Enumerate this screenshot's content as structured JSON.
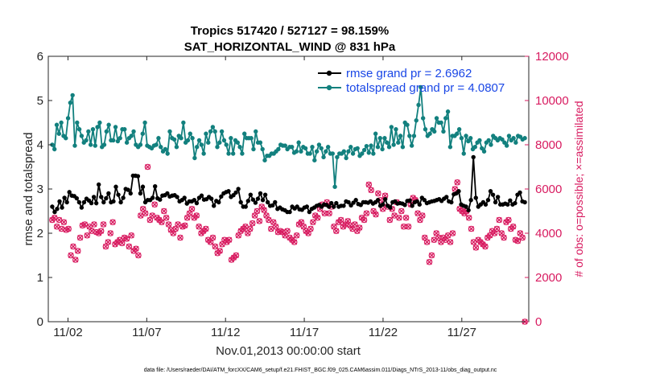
{
  "chart_data": {
    "type": "line",
    "title_line1": "Tropics 517420 / 527127 = 98.159%",
    "title_line2": "SAT_HORIZONTAL_WIND @ 831 hPa",
    "xlabel": "Nov.01,2013 00:00:00 start",
    "ylabel": "rmse and totalspread",
    "ylabel_right": "# of obs: o=possible; ×=assimilated",
    "footer": "data file: /Users/raeder/DAI/ATM_forcXX/CAM6_setup/f.e21.FHIST_BGC.f09_025.CAM6assim.011/Diags_NTrS_2013-11/obs_diag_output.nc",
    "xlim": [
      0.75,
      31.25
    ],
    "ylim": [
      0,
      6
    ],
    "ylim_right": [
      0,
      12000
    ],
    "xticks": [
      2,
      7,
      12,
      17,
      22,
      27
    ],
    "xtick_labels": [
      "11/02",
      "11/07",
      "11/12",
      "11/17",
      "11/22",
      "11/27"
    ],
    "yticks": [
      0,
      1,
      2,
      3,
      4,
      5,
      6
    ],
    "yticks_right": [
      0,
      2000,
      4000,
      6000,
      8000,
      10000,
      12000
    ],
    "colors": {
      "rmse": "#000000",
      "spread": "#12807e",
      "obs": "#d81b60",
      "legend_text": "#1a47e6",
      "axis": "#262626"
    },
    "series": [
      {
        "name": "rmse grand pr = 2.6962",
        "axis": "left",
        "values": [
          2.6,
          2.48,
          2.55,
          2.72,
          2.58,
          2.8,
          2.7,
          2.93,
          2.85,
          2.84,
          2.79,
          2.7,
          2.58,
          2.7,
          2.78,
          2.74,
          2.68,
          2.82,
          2.68,
          3.1,
          2.82,
          2.7,
          2.79,
          2.9,
          2.7,
          2.72,
          3.05,
          2.87,
          2.7,
          2.8,
          3.0,
          2.98,
          2.9,
          3.3,
          3.3,
          3.29,
          2.9,
          3.05,
          2.7,
          2.75,
          2.75,
          2.8,
          3.06,
          2.79,
          2.76,
          2.85,
          2.86,
          2.9,
          2.83,
          2.85,
          2.86,
          2.82,
          2.72,
          2.75,
          2.8,
          2.67,
          2.72,
          2.72,
          2.75,
          2.68,
          2.8,
          2.85,
          2.76,
          2.77,
          2.82,
          2.78,
          2.62,
          2.73,
          2.7,
          2.83,
          2.9,
          2.93,
          2.95,
          2.82,
          2.86,
          2.92,
          3.0,
          2.7,
          2.6,
          2.6,
          2.73,
          2.87,
          2.76,
          2.69,
          2.78,
          2.9,
          2.75,
          2.87,
          2.7,
          2.62,
          2.63,
          2.7,
          2.55,
          2.58,
          2.54,
          2.52,
          2.48,
          2.48,
          2.6,
          2.56,
          2.6,
          2.54,
          2.53,
          2.58,
          2.6,
          2.48,
          2.55,
          2.58,
          2.62,
          2.64,
          2.6,
          2.65,
          2.64,
          2.6,
          2.68,
          2.6,
          2.68,
          2.6,
          2.62,
          2.62,
          2.72,
          2.7,
          2.63,
          2.69,
          2.75,
          2.66,
          2.64,
          2.7,
          2.7,
          2.69,
          2.72,
          2.67,
          2.7,
          2.75,
          2.62,
          2.65,
          2.77,
          2.62,
          2.58,
          2.7,
          2.72,
          2.67,
          2.68,
          2.67,
          2.64,
          2.73,
          2.74,
          2.62,
          2.7,
          2.72,
          2.65,
          2.8,
          2.75,
          2.68,
          2.7,
          2.72,
          2.73,
          2.75,
          2.77,
          2.73,
          2.78,
          2.82,
          2.72,
          2.7,
          2.88,
          2.9,
          2.95,
          2.65,
          2.62,
          2.6,
          2.52,
          2.75,
          3.72,
          2.8,
          2.6,
          2.65,
          2.7,
          2.65,
          2.75,
          2.95,
          2.87,
          2.7,
          2.82,
          2.65,
          2.65,
          2.67,
          2.65,
          2.74,
          2.65,
          2.68,
          2.87,
          2.92,
          2.72,
          2.7
        ]
      },
      {
        "name": "totalspread grand pr = 4.0807",
        "axis": "left",
        "values": [
          4.0,
          3.9,
          4.45,
          4.25,
          4.5,
          4.2,
          4.15,
          4.6,
          4.95,
          5.12,
          3.98,
          4.5,
          4.35,
          4.2,
          4.05,
          4.1,
          4.3,
          4.0,
          4.35,
          3.98,
          4.4,
          4.5,
          3.95,
          4.0,
          4.3,
          4.45,
          4.1,
          4.1,
          4.4,
          4.08,
          4.15,
          4.35,
          4.35,
          4.05,
          4.15,
          4.2,
          4.3,
          4.0,
          3.95,
          4.0,
          4.25,
          4.5,
          3.98,
          3.95,
          3.92,
          3.98,
          4.0,
          4.15,
          3.95,
          3.85,
          3.9,
          3.8,
          4.3,
          4.15,
          4.12,
          3.95,
          4.2,
          4.15,
          4.5,
          4.05,
          4.1,
          4.25,
          4.15,
          3.7,
          3.95,
          4.1,
          4.0,
          3.8,
          4.25,
          4.05,
          4.3,
          4.4,
          4.3,
          3.95,
          4.05,
          4.3,
          4.1,
          4.0,
          3.8,
          4.15,
          3.8,
          4.1,
          4.05,
          3.95,
          3.8,
          4.25,
          4.15,
          4.15,
          4.15,
          3.9,
          4.3,
          4.05,
          4.05,
          3.9,
          3.65,
          3.75,
          3.75,
          3.8,
          3.8,
          3.85,
          3.9,
          4.0,
          3.98,
          3.98,
          3.9,
          3.95,
          3.95,
          3.82,
          3.85,
          4.05,
          3.85,
          3.95,
          3.92,
          3.8,
          3.8,
          3.95,
          3.65,
          3.85,
          4.0,
          3.92,
          3.72,
          3.85,
          3.95,
          3.8,
          3.8,
          3.05,
          3.72,
          3.8,
          3.8,
          3.85,
          3.7,
          3.85,
          3.95,
          3.8,
          3.9,
          3.92,
          3.75,
          3.8,
          3.88,
          3.97,
          3.82,
          3.98,
          3.8,
          4.25,
          3.95,
          4.15,
          3.9,
          4.15,
          4.05,
          3.95,
          4.4,
          4.0,
          4.35,
          4.05,
          4.2,
          3.95,
          4.5,
          4.45,
          4.2,
          3.98,
          4.2,
          4.55,
          4.9,
          5.3,
          4.6,
          4.35,
          4.2,
          4.25,
          4.35,
          4.3,
          4.6,
          4.5,
          4.5,
          4.3,
          4.6,
          4.75,
          3.95,
          4.2,
          4.2,
          4.25,
          4.35,
          4.15,
          3.8,
          4.2,
          4.08,
          4.15,
          3.9,
          3.95,
          4.05,
          4.1,
          3.92,
          3.85,
          4.05,
          4.1,
          4.0,
          4.2,
          4.15,
          4.1,
          4.15,
          4.12,
          4.05,
          3.98,
          4.2,
          4.1,
          4.15,
          4.05,
          4.2,
          4.18,
          4.12,
          4.15
        ]
      },
      {
        "name": "obs possible / assimilated",
        "axis": "right",
        "values": [
          4600,
          4700,
          4300,
          4600,
          4200,
          4500,
          4150,
          4200,
          3000,
          3400,
          2800,
          3200,
          3800,
          4350,
          4400,
          3900,
          4300,
          4100,
          4400,
          4050,
          4000,
          4100,
          4400,
          3400,
          3600,
          4000,
          4500,
          3500,
          3600,
          3700,
          3550,
          3800,
          3750,
          3400,
          3900,
          3200,
          3300,
          3000,
          4800,
          5100,
          4900,
          7000,
          4600,
          4800,
          5300,
          4700,
          4600,
          4500,
          5000,
          4700,
          4400,
          4150,
          4000,
          4200,
          4400,
          3800,
          4300,
          4350,
          4700,
          4900,
          5100,
          4700,
          4800,
          4300,
          4000,
          4100,
          4200,
          3700,
          3600,
          3800,
          3400,
          3100,
          3200,
          3500,
          3700,
          3600,
          3700,
          2800,
          2900,
          3000,
          3900,
          4100,
          4200,
          4300,
          4000,
          4200,
          4450,
          4800,
          5000,
          4550,
          5200,
          5050,
          4800,
          4600,
          4200,
          4500,
          4300,
          4050,
          4100,
          4050,
          3900,
          4100,
          3800,
          3700,
          3600,
          3900,
          4400,
          4500,
          4300,
          4100,
          4000,
          4200,
          4500,
          4800,
          4700,
          5100,
          5300,
          4900,
          5400,
          4900,
          5200,
          4300,
          4100,
          4500,
          4600,
          4300,
          4400,
          4550,
          4350,
          4200,
          4400,
          4100,
          4250,
          4700,
          4600,
          4900,
          6200,
          5950,
          5000,
          4850,
          5800,
          5500,
          5100,
          5700,
          5200,
          4600,
          5100,
          4800,
          5400,
          4700,
          5000,
          4300,
          4700,
          4300,
          5300,
          5600,
          5500,
          4900,
          4600,
          4800,
          3800,
          3600,
          2700,
          3000,
          3700,
          4000,
          3800,
          3600,
          3800,
          3700,
          3900,
          3600,
          4000,
          6000,
          6300,
          5100,
          5000,
          4900,
          5000,
          4700,
          4200,
          3600,
          3350,
          3700,
          3600,
          3500,
          3400,
          3800,
          3900,
          4100,
          4000,
          4200,
          4600,
          4000,
          3800,
          4500,
          4600,
          4200,
          4300,
          3700,
          3650,
          4000,
          3800,
          0
        ]
      }
    ]
  }
}
